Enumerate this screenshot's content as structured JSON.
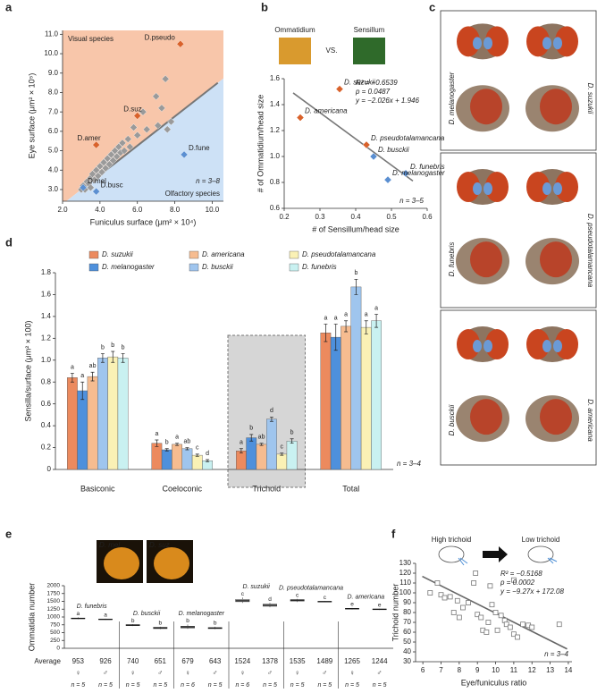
{
  "chart_data": [
    {
      "type": "scatter",
      "label": "a",
      "xlabel": "Funiculus surface (μm² × 10⁴)",
      "ylabel": "Eye surface (μm² × 10⁵)",
      "xlim": [
        2,
        10.6
      ],
      "ylim": [
        2.4,
        11.2
      ],
      "xticks": [
        {
          "value": 2,
          "label": "2.0"
        },
        {
          "value": 4,
          "label": "4.0"
        },
        {
          "value": 6,
          "label": "6.0"
        },
        {
          "value": 8,
          "label": "8.0"
        },
        {
          "value": 10,
          "label": "10.0"
        }
      ],
      "yticks": [
        {
          "value": 3,
          "label": "3.0"
        },
        {
          "value": 4,
          "label": "4.0"
        },
        {
          "value": 5,
          "label": "5.0"
        },
        {
          "value": 6,
          "label": "6.0"
        },
        {
          "value": 7,
          "label": "7.0"
        },
        {
          "value": 8,
          "label": "8.0"
        },
        {
          "value": 9,
          "label": "9.0"
        },
        {
          "value": 10,
          "label": "10.0"
        },
        {
          "value": 11,
          "label": "11.0"
        }
      ],
      "marker": "diamond",
      "regions": [
        {
          "name": "Visual species",
          "color": "#f8c6aa"
        },
        {
          "name": "Olfactory species",
          "color": "#cde1f6"
        }
      ],
      "points": {
        "color": "#9a9a9a",
        "x": [
          3.0,
          3.1,
          3.2,
          3.3,
          3.4,
          3.5,
          3.5,
          3.6,
          3.7,
          3.8,
          3.9,
          4.0,
          4.1,
          4.2,
          4.3,
          4.4,
          4.5,
          4.6,
          4.7,
          4.8,
          4.9,
          5.0,
          5.1,
          5.2,
          5.3,
          5.5,
          5.6,
          5.8,
          6.0,
          6.3,
          6.5,
          7.0,
          7.1,
          7.3,
          7.5,
          7.6,
          7.8
        ],
        "y": [
          3.0,
          3.2,
          3.0,
          3.4,
          3.3,
          3.6,
          3.1,
          3.8,
          3.5,
          4.0,
          3.7,
          4.2,
          3.9,
          4.4,
          4.1,
          4.6,
          4.3,
          4.8,
          4.5,
          5.0,
          4.7,
          5.2,
          4.9,
          5.4,
          5.0,
          5.6,
          5.2,
          6.2,
          5.8,
          7.0,
          6.1,
          7.8,
          6.3,
          7.2,
          8.7,
          6.1,
          6.5
        ]
      },
      "labeled_points": [
        {
          "label": "D.pseudo",
          "x": 8.3,
          "y": 10.5,
          "color": "#d9622b"
        },
        {
          "label": "D.suz",
          "x": 6.0,
          "y": 6.8,
          "color": "#d9622b"
        },
        {
          "label": "D.amer",
          "x": 3.8,
          "y": 5.3,
          "color": "#d9622b"
        },
        {
          "label": "D.fune",
          "x": 8.5,
          "y": 4.8,
          "color": "#5b8fd1"
        },
        {
          "label": "D.mel",
          "x": 3.1,
          "y": 3.1,
          "color": "#5b8fd1"
        },
        {
          "label": "D.busc",
          "x": 3.8,
          "y": 2.9,
          "color": "#5b8fd1"
        }
      ],
      "fit_line": {
        "x": [
          3.0,
          10.3
        ],
        "y": [
          3.0,
          8.5
        ],
        "color": "#777777"
      },
      "n_label": "n = 3–8"
    },
    {
      "type": "scatter",
      "label": "b",
      "xlabel": "# of Sensillum/head size",
      "ylabel": "# of Ommatidium/head size",
      "xlim": [
        0.2,
        0.6
      ],
      "ylim": [
        0.6,
        1.6
      ],
      "xticks": [
        0.2,
        0.3,
        0.4,
        0.5,
        0.6
      ],
      "yticks": [
        0.6,
        0.8,
        {
          "value": 1,
          "label": "1.0"
        },
        1.2,
        1.4,
        1.6
      ],
      "marker": "diamond",
      "labeled_points": [
        {
          "label": "D. americana",
          "x": 0.245,
          "y": 1.3,
          "color": "#d9622b"
        },
        {
          "label": "D. suzukii",
          "x": 0.355,
          "y": 1.52,
          "color": "#d9622b"
        },
        {
          "label": "D. pseudotalamancana",
          "x": 0.43,
          "y": 1.09,
          "color": "#d9622b"
        },
        {
          "label": "D. busckii",
          "x": 0.45,
          "y": 1.0,
          "color": "#5b8fd1"
        },
        {
          "label": "D. funebris",
          "x": 0.54,
          "y": 0.87,
          "color": "#5b8fd1"
        },
        {
          "label": "D. melanogaster",
          "x": 0.49,
          "y": 0.82,
          "color": "#5b8fd1"
        }
      ],
      "fit": {
        "slope": -2.026,
        "intercept": 1.946,
        "color": "#777777"
      },
      "stats": [
        "R² = −0.6539",
        "p = 0.0487",
        "y = −2.026x + 1.946"
      ],
      "n_label": "n = 3–5",
      "images": [
        "Ommatidium",
        "Sensillum"
      ],
      "vs_label": "VS."
    },
    {
      "type": "bar",
      "label": "d",
      "ylabel": "Sensilla/surface (μm² × 100)",
      "ylim": [
        0,
        1.8
      ],
      "yticks": [
        0,
        0.2,
        0.4,
        0.6,
        0.8,
        {
          "value": 1,
          "label": "1.0"
        },
        1.2,
        1.4,
        1.6,
        1.8
      ],
      "categories": [
        "Basiconic",
        "Coeloconic",
        "Trichoid",
        "Total"
      ],
      "highlight": "Trichoid",
      "series": [
        {
          "name": "D. suzukii",
          "color": "#ec8a5e",
          "values": [
            0.84,
            0.24,
            0.17,
            1.25
          ],
          "errors": [
            0.04,
            0.03,
            0.02,
            0.08
          ],
          "letters": [
            "a",
            "a",
            "a",
            "a"
          ]
        },
        {
          "name": "D. melanogaster",
          "color": "#4e90dc",
          "values": [
            0.72,
            0.18,
            0.29,
            1.21
          ],
          "errors": [
            0.08,
            0.01,
            0.03,
            0.12
          ],
          "letters": [
            "a",
            "b",
            "b",
            "a"
          ]
        },
        {
          "name": "D. americana",
          "color": "#f6bc90",
          "values": [
            0.85,
            0.23,
            0.23,
            1.31
          ],
          "errors": [
            0.04,
            0.01,
            0.01,
            0.05
          ],
          "letters": [
            "ab",
            "a",
            "ab",
            "a"
          ]
        },
        {
          "name": "D. busckii",
          "color": "#9fc5ee",
          "values": [
            1.02,
            0.19,
            0.46,
            1.67
          ],
          "errors": [
            0.04,
            0.01,
            0.02,
            0.07
          ],
          "letters": [
            "b",
            "ab",
            "d",
            "b"
          ]
        },
        {
          "name": "D. pseudotalamancana",
          "color": "#faf1b5",
          "values": [
            1.03,
            0.13,
            0.14,
            1.3
          ],
          "errors": [
            0.05,
            0.01,
            0.01,
            0.06
          ],
          "letters": [
            "b",
            "c",
            "c",
            "a"
          ]
        },
        {
          "name": "D. funebris",
          "color": "#c9f1f1",
          "values": [
            1.02,
            0.08,
            0.26,
            1.36
          ],
          "errors": [
            0.04,
            0.01,
            0.02,
            0.06
          ],
          "letters": [
            "b",
            "d",
            "b",
            "a"
          ]
        }
      ],
      "n_label": "n = 3–4"
    },
    {
      "type": "box",
      "label": "e",
      "ylabel": "Ommatidia number",
      "ylim": [
        0,
        2000
      ],
      "yticks": [
        0,
        250,
        500,
        750,
        1000,
        1250,
        1500,
        1750,
        2000
      ],
      "groups": [
        "D. funebris",
        "D. busckii",
        "D. melanogaster",
        "D. suzukii",
        "D. pseudotalamancana",
        "D. americana"
      ],
      "boxes": [
        {
          "min": 930,
          "q1": 945,
          "median": 955,
          "q3": 965,
          "max": 990
        },
        {
          "min": 910,
          "q1": 918,
          "median": 925,
          "q3": 935,
          "max": 945
        },
        {
          "min": 710,
          "q1": 725,
          "median": 740,
          "q3": 755,
          "max": 770
        },
        {
          "min": 610,
          "q1": 630,
          "median": 650,
          "q3": 670,
          "max": 690
        },
        {
          "min": 620,
          "q1": 650,
          "median": 680,
          "q3": 705,
          "max": 760
        },
        {
          "min": 610,
          "q1": 630,
          "median": 645,
          "q3": 660,
          "max": 690
        },
        {
          "min": 1450,
          "q1": 1490,
          "median": 1520,
          "q3": 1560,
          "max": 1620
        },
        {
          "min": 1310,
          "q1": 1345,
          "median": 1375,
          "q3": 1410,
          "max": 1450
        },
        {
          "min": 1480,
          "q1": 1510,
          "median": 1535,
          "q3": 1555,
          "max": 1580
        },
        {
          "min": 1470,
          "q1": 1480,
          "median": 1490,
          "q3": 1500,
          "max": 1510
        },
        {
          "min": 1240,
          "q1": 1255,
          "median": 1265,
          "q3": 1275,
          "max": 1290
        },
        {
          "min": 1225,
          "q1": 1235,
          "median": 1245,
          "q3": 1255,
          "max": 1265
        }
      ],
      "letters": [
        "a",
        "a",
        "b",
        "b",
        "b",
        "b",
        "c",
        "d",
        "c",
        "c",
        "e",
        "e"
      ],
      "averages_label": "Average",
      "averages": [
        953,
        926,
        740,
        651,
        679,
        643,
        1524,
        1378,
        1535,
        1489,
        1265,
        1244
      ],
      "sexes": [
        "♀",
        "♂",
        "♀",
        "♂",
        "♀",
        "♂",
        "♀",
        "♂",
        "♀",
        "♂",
        "♀",
        "♂"
      ],
      "n_labels": [
        "n = 5",
        "n = 5",
        "n = 5",
        "n = 5",
        "n = 6",
        "n = 5",
        "n = 6",
        "n = 5",
        "n = 5",
        "n = 5",
        "n = 5",
        "n = 5"
      ],
      "images": [
        "D. mel",
        "D. suz"
      ]
    },
    {
      "type": "scatter",
      "label": "f",
      "xlabel": "Eye/funiculus ratio",
      "ylabel": "Trichoid number",
      "xlim": [
        5.6,
        14.2
      ],
      "ylim": [
        30,
        130
      ],
      "xticks": [
        6,
        7,
        8,
        9,
        10,
        11,
        12,
        13,
        14
      ],
      "yticks": [
        30,
        40,
        50,
        60,
        70,
        80,
        90,
        100,
        110,
        120,
        130
      ],
      "marker": "square",
      "points": {
        "color": "#777777",
        "x": [
          6.4,
          6.8,
          7.0,
          7.2,
          7.5,
          7.7,
          7.9,
          8.0,
          8.2,
          8.5,
          8.8,
          8.9,
          9.0,
          9.2,
          9.3,
          9.5,
          9.6,
          9.8,
          10.0,
          10.1,
          10.3,
          10.5,
          10.6,
          10.8,
          11.0,
          11.2,
          11.5,
          11.8,
          12.0,
          13.5,
          9.7,
          11.0
        ],
        "y": [
          100,
          110,
          98,
          95,
          96,
          80,
          92,
          75,
          85,
          90,
          110,
          120,
          78,
          75,
          62,
          60,
          70,
          88,
          80,
          62,
          77,
          72,
          68,
          65,
          58,
          55,
          68,
          67,
          65,
          68,
          107,
          113
        ]
      },
      "fit": {
        "slope": -9.27,
        "intercept": 172.08,
        "color": "#666666"
      },
      "stats": [
        "R² = −0.5168",
        "p = 0.0002",
        "y = −9.27x + 172.08"
      ],
      "n_label": "n = 3–4",
      "icons": [
        "High trichoid",
        "Low trichoid"
      ]
    }
  ],
  "panel_c": {
    "label": "c",
    "species": [
      "D. melanogaster",
      "D. suzukii",
      "D. funebris",
      "D. pseudotalamancana",
      "D. busckii",
      "D. americana"
    ]
  }
}
